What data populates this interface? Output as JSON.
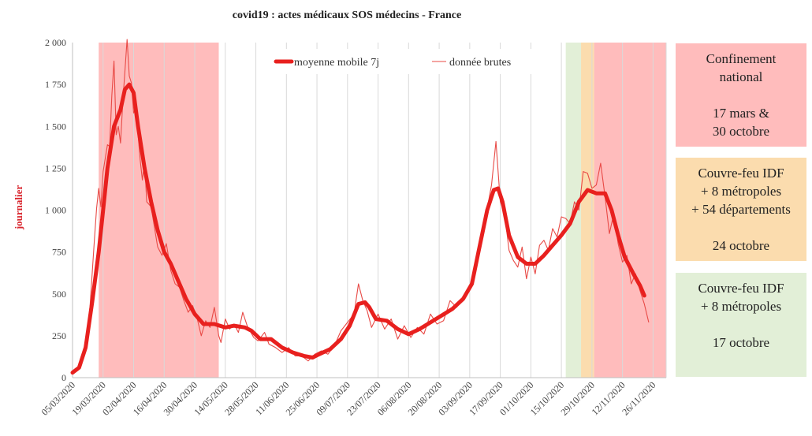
{
  "chart_data": {
    "type": "line",
    "title": "covid19 : actes médicaux SOS médecins - France",
    "ylabel": "journalier",
    "xlabel": "",
    "ylim": [
      0,
      2000
    ],
    "yticks": [
      0,
      250,
      500,
      750,
      1000,
      1250,
      1500,
      1750,
      2000
    ],
    "ytick_labels": [
      "0",
      "250",
      "500",
      "750",
      "1 000",
      "1 250",
      "1 500",
      "1 750",
      "2 000"
    ],
    "xlim": [
      "2020-03-05",
      "2020-12-02"
    ],
    "xtick_labels": [
      "05/03/2020",
      "19/03/2020",
      "02/04/2020",
      "16/04/2020",
      "30/04/2020",
      "14/05/2020",
      "28/05/2020",
      "11/06/2020",
      "25/06/2020",
      "09/07/2020",
      "23/07/2020",
      "06/08/2020",
      "20/08/2020",
      "03/09/2020",
      "17/09/2020",
      "01/10/2020",
      "15/10/2020",
      "29/10/2020",
      "12/11/2020",
      "26/11/2020"
    ],
    "grid": "vertical",
    "legend_position": "top-center",
    "series": [
      {
        "name": "moyenne mobile 7j",
        "color": "#e8201e",
        "style": "thick",
        "points": [
          [
            "2020-03-05",
            30
          ],
          [
            "2020-03-08",
            60
          ],
          [
            "2020-03-11",
            180
          ],
          [
            "2020-03-14",
            450
          ],
          [
            "2020-03-17",
            750
          ],
          [
            "2020-03-19",
            1000
          ],
          [
            "2020-03-21",
            1250
          ],
          [
            "2020-03-24",
            1500
          ],
          [
            "2020-03-27",
            1600
          ],
          [
            "2020-03-29",
            1720
          ],
          [
            "2020-03-31",
            1750
          ],
          [
            "2020-04-02",
            1700
          ],
          [
            "2020-04-04",
            1500
          ],
          [
            "2020-04-07",
            1250
          ],
          [
            "2020-04-10",
            1050
          ],
          [
            "2020-04-13",
            880
          ],
          [
            "2020-04-16",
            750
          ],
          [
            "2020-04-19",
            680
          ],
          [
            "2020-04-22",
            590
          ],
          [
            "2020-04-26",
            470
          ],
          [
            "2020-04-30",
            380
          ],
          [
            "2020-05-04",
            320
          ],
          [
            "2020-05-09",
            320
          ],
          [
            "2020-05-14",
            300
          ],
          [
            "2020-05-18",
            310
          ],
          [
            "2020-05-23",
            300
          ],
          [
            "2020-05-26",
            280
          ],
          [
            "2020-05-30",
            230
          ],
          [
            "2020-06-04",
            230
          ],
          [
            "2020-06-09",
            180
          ],
          [
            "2020-06-14",
            150
          ],
          [
            "2020-06-19",
            130
          ],
          [
            "2020-06-23",
            120
          ],
          [
            "2020-06-26",
            140
          ],
          [
            "2020-07-01",
            170
          ],
          [
            "2020-07-06",
            230
          ],
          [
            "2020-07-10",
            310
          ],
          [
            "2020-07-14",
            440
          ],
          [
            "2020-07-17",
            450
          ],
          [
            "2020-07-19",
            420
          ],
          [
            "2020-07-22",
            350
          ],
          [
            "2020-07-27",
            340
          ],
          [
            "2020-08-01",
            290
          ],
          [
            "2020-08-06",
            260
          ],
          [
            "2020-08-11",
            290
          ],
          [
            "2020-08-16",
            330
          ],
          [
            "2020-08-21",
            370
          ],
          [
            "2020-08-26",
            410
          ],
          [
            "2020-08-31",
            470
          ],
          [
            "2020-09-04",
            560
          ],
          [
            "2020-09-07",
            750
          ],
          [
            "2020-09-11",
            1000
          ],
          [
            "2020-09-14",
            1120
          ],
          [
            "2020-09-16",
            1130
          ],
          [
            "2020-09-18",
            1050
          ],
          [
            "2020-09-21",
            850
          ],
          [
            "2020-09-25",
            720
          ],
          [
            "2020-09-29",
            680
          ],
          [
            "2020-10-03",
            680
          ],
          [
            "2020-10-07",
            730
          ],
          [
            "2020-10-11",
            790
          ],
          [
            "2020-10-15",
            850
          ],
          [
            "2020-10-19",
            920
          ],
          [
            "2020-10-23",
            1050
          ],
          [
            "2020-10-27",
            1120
          ],
          [
            "2020-10-31",
            1100
          ],
          [
            "2020-11-04",
            1100
          ],
          [
            "2020-11-07",
            1000
          ],
          [
            "2020-11-10",
            850
          ],
          [
            "2020-11-13",
            720
          ],
          [
            "2020-11-17",
            620
          ],
          [
            "2020-11-20",
            550
          ],
          [
            "2020-11-22",
            490
          ]
        ]
      },
      {
        "name": "donnée brutes",
        "color": "#e84a46",
        "style": "thin",
        "points": [
          [
            "2020-03-05",
            20
          ],
          [
            "2020-03-07",
            45
          ],
          [
            "2020-03-09",
            100
          ],
          [
            "2020-03-11",
            190
          ],
          [
            "2020-03-13",
            420
          ],
          [
            "2020-03-15",
            820
          ],
          [
            "2020-03-16",
            1010
          ],
          [
            "2020-03-17",
            1130
          ],
          [
            "2020-03-18",
            1020
          ],
          [
            "2020-03-19",
            1230
          ],
          [
            "2020-03-21",
            1390
          ],
          [
            "2020-03-22",
            1380
          ],
          [
            "2020-03-23",
            1680
          ],
          [
            "2020-03-24",
            1890
          ],
          [
            "2020-03-25",
            1450
          ],
          [
            "2020-03-26",
            1500
          ],
          [
            "2020-03-27",
            1400
          ],
          [
            "2020-03-28",
            1640
          ],
          [
            "2020-03-30",
            2020
          ],
          [
            "2020-03-31",
            1800
          ],
          [
            "2020-04-01",
            1760
          ],
          [
            "2020-04-02",
            1580
          ],
          [
            "2020-04-03",
            1610
          ],
          [
            "2020-04-05",
            1300
          ],
          [
            "2020-04-06",
            1180
          ],
          [
            "2020-04-07",
            1290
          ],
          [
            "2020-04-08",
            1050
          ],
          [
            "2020-04-10",
            1020
          ],
          [
            "2020-04-12",
            860
          ],
          [
            "2020-04-13",
            780
          ],
          [
            "2020-04-15",
            730
          ],
          [
            "2020-04-17",
            800
          ],
          [
            "2020-04-19",
            640
          ],
          [
            "2020-04-21",
            560
          ],
          [
            "2020-04-23",
            540
          ],
          [
            "2020-04-25",
            460
          ],
          [
            "2020-04-27",
            390
          ],
          [
            "2020-04-29",
            430
          ],
          [
            "2020-05-01",
            360
          ],
          [
            "2020-05-03",
            250
          ],
          [
            "2020-05-05",
            340
          ],
          [
            "2020-05-07",
            300
          ],
          [
            "2020-05-09",
            420
          ],
          [
            "2020-05-11",
            250
          ],
          [
            "2020-05-12",
            210
          ],
          [
            "2020-05-14",
            350
          ],
          [
            "2020-05-16",
            290
          ],
          [
            "2020-05-18",
            320
          ],
          [
            "2020-05-20",
            270
          ],
          [
            "2020-05-22",
            390
          ],
          [
            "2020-05-24",
            310
          ],
          [
            "2020-05-27",
            240
          ],
          [
            "2020-05-29",
            220
          ],
          [
            "2020-06-01",
            270
          ],
          [
            "2020-06-03",
            200
          ],
          [
            "2020-06-06",
            180
          ],
          [
            "2020-06-09",
            150
          ],
          [
            "2020-06-12",
            180
          ],
          [
            "2020-06-15",
            130
          ],
          [
            "2020-06-18",
            130
          ],
          [
            "2020-06-21",
            100
          ],
          [
            "2020-06-24",
            140
          ],
          [
            "2020-06-27",
            160
          ],
          [
            "2020-06-30",
            140
          ],
          [
            "2020-07-03",
            190
          ],
          [
            "2020-07-06",
            280
          ],
          [
            "2020-07-09",
            330
          ],
          [
            "2020-07-12",
            380
          ],
          [
            "2020-07-14",
            560
          ],
          [
            "2020-07-16",
            460
          ],
          [
            "2020-07-18",
            400
          ],
          [
            "2020-07-20",
            300
          ],
          [
            "2020-07-23",
            380
          ],
          [
            "2020-07-26",
            290
          ],
          [
            "2020-07-29",
            350
          ],
          [
            "2020-08-01",
            230
          ],
          [
            "2020-08-04",
            310
          ],
          [
            "2020-08-07",
            240
          ],
          [
            "2020-08-10",
            300
          ],
          [
            "2020-08-13",
            260
          ],
          [
            "2020-08-16",
            380
          ],
          [
            "2020-08-19",
            320
          ],
          [
            "2020-08-22",
            340
          ],
          [
            "2020-08-25",
            460
          ],
          [
            "2020-08-28",
            420
          ],
          [
            "2020-08-31",
            480
          ],
          [
            "2020-09-03",
            530
          ],
          [
            "2020-09-06",
            650
          ],
          [
            "2020-09-09",
            880
          ],
          [
            "2020-09-11",
            1010
          ],
          [
            "2020-09-13",
            1150
          ],
          [
            "2020-09-15",
            1410
          ],
          [
            "2020-09-17",
            1050
          ],
          [
            "2020-09-19",
            980
          ],
          [
            "2020-09-21",
            760
          ],
          [
            "2020-09-23",
            700
          ],
          [
            "2020-09-25",
            660
          ],
          [
            "2020-09-27",
            780
          ],
          [
            "2020-09-29",
            590
          ],
          [
            "2020-10-01",
            720
          ],
          [
            "2020-10-03",
            620
          ],
          [
            "2020-10-05",
            790
          ],
          [
            "2020-10-07",
            820
          ],
          [
            "2020-10-09",
            760
          ],
          [
            "2020-10-11",
            890
          ],
          [
            "2020-10-13",
            840
          ],
          [
            "2020-10-15",
            960
          ],
          [
            "2020-10-17",
            950
          ],
          [
            "2020-10-19",
            920
          ],
          [
            "2020-10-21",
            1050
          ],
          [
            "2020-10-23",
            1000
          ],
          [
            "2020-10-25",
            1230
          ],
          [
            "2020-10-27",
            1220
          ],
          [
            "2020-10-29",
            1130
          ],
          [
            "2020-10-31",
            1150
          ],
          [
            "2020-11-02",
            1280
          ],
          [
            "2020-11-04",
            1080
          ],
          [
            "2020-11-06",
            860
          ],
          [
            "2020-11-08",
            980
          ],
          [
            "2020-11-10",
            800
          ],
          [
            "2020-11-12",
            690
          ],
          [
            "2020-11-14",
            730
          ],
          [
            "2020-11-16",
            560
          ],
          [
            "2020-11-18",
            620
          ],
          [
            "2020-11-20",
            520
          ],
          [
            "2020-11-22",
            440
          ],
          [
            "2020-11-24",
            330
          ]
        ]
      }
    ],
    "shaded_periods": [
      {
        "start": "2020-03-17",
        "end": "2020-05-11",
        "color": "#ffbcbc"
      },
      {
        "start": "2020-10-17",
        "end": "2020-10-24",
        "color": "#e2efd7"
      },
      {
        "start": "2020-10-24",
        "end": "2020-10-30",
        "color": "#fbdcae"
      },
      {
        "start": "2020-10-30",
        "end": "2020-12-02",
        "color": "#ffbcbc"
      }
    ]
  },
  "legend": {
    "item1": "moyenne mobile 7j",
    "item2": "donnée brutes"
  },
  "boxes": {
    "confinement": {
      "line1": "Confinement",
      "line2": "national",
      "line3": "17 mars &",
      "line4": "30 octobre",
      "color": "#ffbcbc"
    },
    "couvrefeu54": {
      "line1": "Couvre-feu IDF",
      "line2": "+ 8 métropoles",
      "line3": "+ 54 départements",
      "line4": "24 octobre",
      "color": "#fbdcae"
    },
    "couvrefeu8": {
      "line1": "Couvre-feu IDF",
      "line2": "+ 8 métropoles",
      "line3": "17 octobre",
      "color": "#e2efd7"
    }
  }
}
